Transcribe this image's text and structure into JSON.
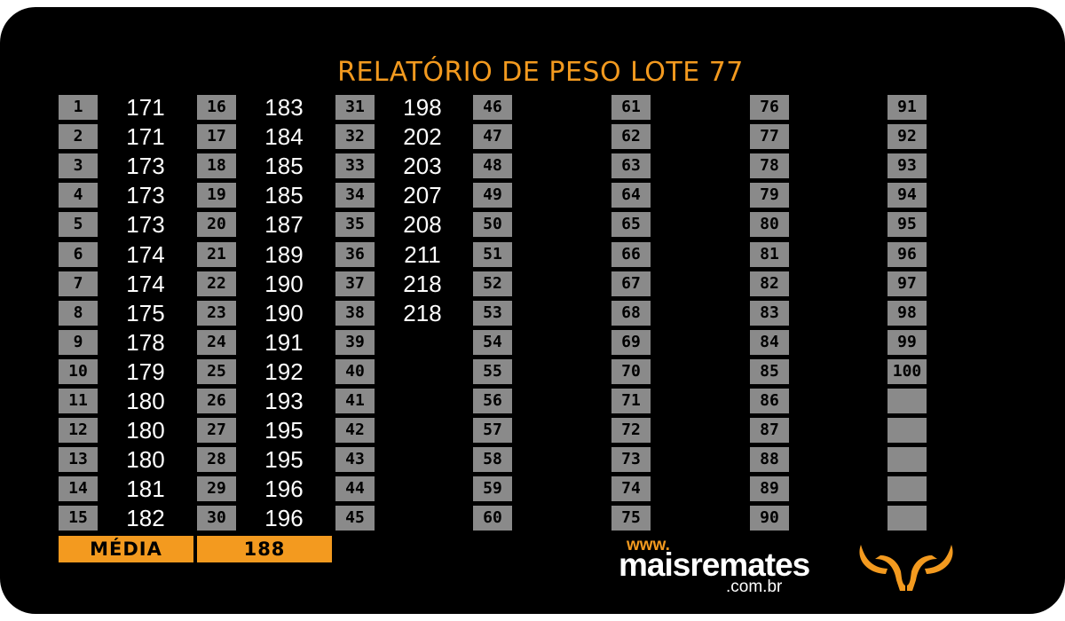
{
  "title": "RELATÓRIO DE PESO LOTE 77",
  "columns": [
    {
      "numbers": [
        "1",
        "2",
        "3",
        "4",
        "5",
        "6",
        "7",
        "8",
        "9",
        "10",
        "11",
        "12",
        "13",
        "14",
        "15"
      ],
      "values": [
        "171",
        "171",
        "173",
        "173",
        "173",
        "174",
        "174",
        "175",
        "178",
        "179",
        "180",
        "180",
        "180",
        "181",
        "182"
      ]
    },
    {
      "numbers": [
        "16",
        "17",
        "18",
        "19",
        "20",
        "21",
        "22",
        "23",
        "24",
        "25",
        "26",
        "27",
        "28",
        "29",
        "30"
      ],
      "values": [
        "183",
        "184",
        "185",
        "185",
        "187",
        "189",
        "190",
        "190",
        "191",
        "192",
        "193",
        "195",
        "195",
        "196",
        "196"
      ]
    },
    {
      "numbers": [
        "31",
        "32",
        "33",
        "34",
        "35",
        "36",
        "37",
        "38",
        "39",
        "40",
        "41",
        "42",
        "43",
        "44",
        "45"
      ],
      "values": [
        "198",
        "202",
        "203",
        "207",
        "208",
        "211",
        "218",
        "218",
        "",
        "",
        "",
        "",
        "",
        "",
        ""
      ]
    },
    {
      "numbers": [
        "46",
        "47",
        "48",
        "49",
        "50",
        "51",
        "52",
        "53",
        "54",
        "55",
        "56",
        "57",
        "58",
        "59",
        "60"
      ],
      "values": [
        "",
        "",
        "",
        "",
        "",
        "",
        "",
        "",
        "",
        "",
        "",
        "",
        "",
        "",
        ""
      ]
    },
    {
      "numbers": [
        "61",
        "62",
        "63",
        "64",
        "65",
        "66",
        "67",
        "68",
        "69",
        "70",
        "71",
        "72",
        "73",
        "74",
        "75"
      ],
      "values": [
        "",
        "",
        "",
        "",
        "",
        "",
        "",
        "",
        "",
        "",
        "",
        "",
        "",
        "",
        ""
      ]
    },
    {
      "numbers": [
        "76",
        "77",
        "78",
        "79",
        "80",
        "81",
        "82",
        "83",
        "84",
        "85",
        "86",
        "87",
        "88",
        "89",
        "90"
      ],
      "values": [
        "",
        "",
        "",
        "",
        "",
        "",
        "",
        "",
        "",
        "",
        "",
        "",
        "",
        "",
        ""
      ]
    },
    {
      "numbers": [
        "91",
        "92",
        "93",
        "94",
        "95",
        "96",
        "97",
        "98",
        "99",
        "100",
        "",
        "",
        "",
        "",
        ""
      ],
      "values": [
        "",
        "",
        "",
        "",
        "",
        "",
        "",
        "",
        "",
        "",
        "",
        "",
        "",
        "",
        ""
      ]
    }
  ],
  "media": {
    "label": "MÉDIA",
    "value": "188"
  },
  "footer": {
    "www": "www.",
    "brand": "maisremates",
    "domain": ".com.br"
  },
  "logo": {
    "icon": "bull-horns-icon",
    "color": "#f39a1f"
  },
  "colors": {
    "accent": "#f39a1f",
    "background": "#000000",
    "number_box": "#8a8a8a",
    "value_text": "#ffffff"
  }
}
